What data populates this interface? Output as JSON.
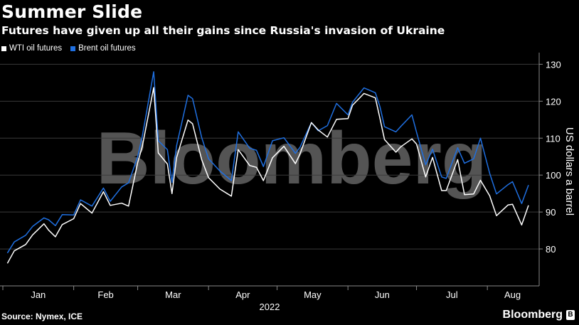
{
  "header": {
    "title": "Summer Slide",
    "subtitle": "Futures have given up all their gains since Russia's invasion of Ukraine"
  },
  "legend": [
    {
      "label": "WTI oil futures",
      "color": "#ffffff"
    },
    {
      "label": "Brent oil futures",
      "color": "#1f6fe0"
    }
  ],
  "footer": {
    "source": "Source: Nymex, ICE",
    "brand": "Bloomberg",
    "watermark": "Bloomberg"
  },
  "colors": {
    "background": "#000000",
    "wti": "#ffffff",
    "brent": "#1f6fe0",
    "text": "#ffffff"
  },
  "chart_data": {
    "type": "line",
    "title": "Summer Slide",
    "subtitle": "Futures have given up all their gains since Russia's invasion of Ukraine",
    "ylabel": "US dollars a barrel",
    "xlabel": "2022",
    "ylim": [
      70,
      132
    ],
    "xlim": [
      "2022-01-01",
      "2022-08-19"
    ],
    "yticks": [
      80,
      90,
      100,
      110,
      120,
      130
    ],
    "x_month_labels": [
      "Jan",
      "Feb",
      "Mar",
      "Apr",
      "May",
      "Jun",
      "Jul",
      "Aug"
    ],
    "year_label": "2022",
    "y_axis_position": "right",
    "grid": true,
    "legend_position": "top-left",
    "series": [
      {
        "name": "WTI oil futures",
        "color": "#ffffff",
        "points": [
          [
            "2022-01-03",
            76.1
          ],
          [
            "2022-01-06",
            79.5
          ],
          [
            "2022-01-11",
            81.2
          ],
          [
            "2022-01-14",
            83.8
          ],
          [
            "2022-01-19",
            86.8
          ],
          [
            "2022-01-21",
            85.1
          ],
          [
            "2022-01-24",
            83.3
          ],
          [
            "2022-01-27",
            86.6
          ],
          [
            "2022-02-01",
            88.2
          ],
          [
            "2022-02-04",
            92.3
          ],
          [
            "2022-02-09",
            89.7
          ],
          [
            "2022-02-14",
            95.5
          ],
          [
            "2022-02-17",
            91.8
          ],
          [
            "2022-02-22",
            92.4
          ],
          [
            "2022-02-25",
            91.6
          ],
          [
            "2022-03-01",
            103.4
          ],
          [
            "2022-03-03",
            107.7
          ],
          [
            "2022-03-08",
            123.7
          ],
          [
            "2022-03-10",
            106.0
          ],
          [
            "2022-03-14",
            103.0
          ],
          [
            "2022-03-16",
            95.0
          ],
          [
            "2022-03-18",
            104.7
          ],
          [
            "2022-03-23",
            114.9
          ],
          [
            "2022-03-25",
            113.9
          ],
          [
            "2022-03-29",
            104.2
          ],
          [
            "2022-04-01",
            99.3
          ],
          [
            "2022-04-06",
            96.2
          ],
          [
            "2022-04-11",
            94.3
          ],
          [
            "2022-04-14",
            106.9
          ],
          [
            "2022-04-19",
            102.6
          ],
          [
            "2022-04-22",
            102.1
          ],
          [
            "2022-04-25",
            98.5
          ],
          [
            "2022-04-29",
            104.7
          ],
          [
            "2022-05-04",
            107.8
          ],
          [
            "2022-05-09",
            103.1
          ],
          [
            "2022-05-11",
            105.7
          ],
          [
            "2022-05-16",
            114.2
          ],
          [
            "2022-05-19",
            112.2
          ],
          [
            "2022-05-23",
            110.3
          ],
          [
            "2022-05-27",
            115.1
          ],
          [
            "2022-06-01",
            115.3
          ],
          [
            "2022-06-03",
            118.9
          ],
          [
            "2022-06-08",
            122.1
          ],
          [
            "2022-06-13",
            120.9
          ],
          [
            "2022-06-15",
            115.3
          ],
          [
            "2022-06-17",
            109.6
          ],
          [
            "2022-06-22",
            106.2
          ],
          [
            "2022-06-24",
            107.6
          ],
          [
            "2022-06-29",
            109.8
          ],
          [
            "2022-07-01",
            108.4
          ],
          [
            "2022-07-05",
            99.5
          ],
          [
            "2022-07-08",
            104.8
          ],
          [
            "2022-07-12",
            95.8
          ],
          [
            "2022-07-14",
            95.8
          ],
          [
            "2022-07-19",
            104.2
          ],
          [
            "2022-07-22",
            94.7
          ],
          [
            "2022-07-26",
            94.9
          ],
          [
            "2022-07-29",
            98.6
          ],
          [
            "2022-08-02",
            94.4
          ],
          [
            "2022-08-05",
            89.0
          ],
          [
            "2022-08-10",
            91.9
          ],
          [
            "2022-08-12",
            92.1
          ],
          [
            "2022-08-16",
            86.5
          ],
          [
            "2022-08-19",
            91.8
          ]
        ]
      },
      {
        "name": "Brent oil futures",
        "color": "#1f6fe0",
        "points": [
          [
            "2022-01-03",
            78.9
          ],
          [
            "2022-01-06",
            81.9
          ],
          [
            "2022-01-11",
            83.7
          ],
          [
            "2022-01-14",
            86.1
          ],
          [
            "2022-01-19",
            88.4
          ],
          [
            "2022-01-21",
            87.9
          ],
          [
            "2022-01-24",
            86.3
          ],
          [
            "2022-01-27",
            89.3
          ],
          [
            "2022-02-01",
            89.2
          ],
          [
            "2022-02-04",
            93.3
          ],
          [
            "2022-02-09",
            91.6
          ],
          [
            "2022-02-14",
            96.5
          ],
          [
            "2022-02-17",
            92.9
          ],
          [
            "2022-02-22",
            96.8
          ],
          [
            "2022-02-25",
            97.9
          ],
          [
            "2022-03-01",
            105.0
          ],
          [
            "2022-03-03",
            110.5
          ],
          [
            "2022-03-08",
            127.98
          ],
          [
            "2022-03-10",
            109.3
          ],
          [
            "2022-03-14",
            106.9
          ],
          [
            "2022-03-16",
            98.0
          ],
          [
            "2022-03-18",
            107.9
          ],
          [
            "2022-03-23",
            121.6
          ],
          [
            "2022-03-25",
            120.7
          ],
          [
            "2022-03-29",
            110.2
          ],
          [
            "2022-04-01",
            104.4
          ],
          [
            "2022-04-06",
            101.1
          ],
          [
            "2022-04-11",
            98.5
          ],
          [
            "2022-04-14",
            111.7
          ],
          [
            "2022-04-19",
            107.3
          ],
          [
            "2022-04-22",
            106.7
          ],
          [
            "2022-04-25",
            102.3
          ],
          [
            "2022-04-29",
            109.3
          ],
          [
            "2022-05-04",
            110.1
          ],
          [
            "2022-05-09",
            105.9
          ],
          [
            "2022-05-11",
            107.5
          ],
          [
            "2022-05-16",
            114.2
          ],
          [
            "2022-05-19",
            112.0
          ],
          [
            "2022-05-23",
            113.4
          ],
          [
            "2022-05-27",
            119.4
          ],
          [
            "2022-06-01",
            116.3
          ],
          [
            "2022-06-03",
            119.7
          ],
          [
            "2022-06-08",
            123.6
          ],
          [
            "2022-06-13",
            122.3
          ],
          [
            "2022-06-15",
            118.5
          ],
          [
            "2022-06-17",
            113.1
          ],
          [
            "2022-06-22",
            111.7
          ],
          [
            "2022-06-24",
            113.1
          ],
          [
            "2022-06-29",
            116.3
          ],
          [
            "2022-07-01",
            111.6
          ],
          [
            "2022-07-05",
            102.8
          ],
          [
            "2022-07-08",
            107.0
          ],
          [
            "2022-07-12",
            99.5
          ],
          [
            "2022-07-14",
            99.1
          ],
          [
            "2022-07-19",
            107.4
          ],
          [
            "2022-07-22",
            103.2
          ],
          [
            "2022-07-26",
            104.4
          ],
          [
            "2022-07-29",
            110.0
          ],
          [
            "2022-08-02",
            100.5
          ],
          [
            "2022-08-05",
            94.9
          ],
          [
            "2022-08-10",
            97.4
          ],
          [
            "2022-08-12",
            98.2
          ],
          [
            "2022-08-16",
            92.3
          ],
          [
            "2022-08-19",
            97.3
          ]
        ]
      }
    ]
  }
}
